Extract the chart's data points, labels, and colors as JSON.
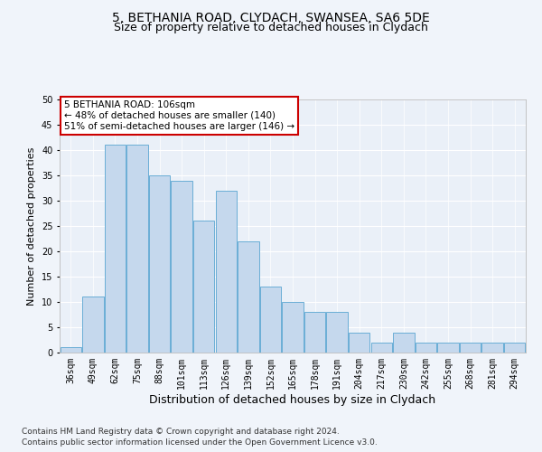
{
  "title1": "5, BETHANIA ROAD, CLYDACH, SWANSEA, SA6 5DE",
  "title2": "Size of property relative to detached houses in Clydach",
  "xlabel": "Distribution of detached houses by size in Clydach",
  "ylabel": "Number of detached properties",
  "categories": [
    "36sqm",
    "49sqm",
    "62sqm",
    "75sqm",
    "88sqm",
    "101sqm",
    "113sqm",
    "126sqm",
    "139sqm",
    "152sqm",
    "165sqm",
    "178sqm",
    "191sqm",
    "204sqm",
    "217sqm",
    "230sqm",
    "242sqm",
    "255sqm",
    "268sqm",
    "281sqm",
    "294sqm"
  ],
  "values": [
    1,
    11,
    41,
    41,
    35,
    34,
    26,
    32,
    22,
    13,
    10,
    8,
    8,
    4,
    2,
    4,
    2,
    2,
    2,
    2,
    2
  ],
  "bar_color": "#c5d8ed",
  "bar_edgecolor": "#6aaed6",
  "annotation_text": "5 BETHANIA ROAD: 106sqm\n← 48% of detached houses are smaller (140)\n51% of semi-detached houses are larger (146) →",
  "annotation_box_color": "#ffffff",
  "annotation_box_edgecolor": "#cc0000",
  "ylim": [
    0,
    50
  ],
  "yticks": [
    0,
    5,
    10,
    15,
    20,
    25,
    30,
    35,
    40,
    45,
    50
  ],
  "footer1": "Contains HM Land Registry data © Crown copyright and database right 2024.",
  "footer2": "Contains public sector information licensed under the Open Government Licence v3.0.",
  "bg_color": "#f0f4fa",
  "plot_bg_color": "#eaf0f8",
  "grid_color": "#ffffff",
  "title1_fontsize": 10,
  "title2_fontsize": 9,
  "xlabel_fontsize": 9,
  "ylabel_fontsize": 8,
  "tick_fontsize": 7,
  "footer_fontsize": 6.5,
  "ann_fontsize": 7.5
}
